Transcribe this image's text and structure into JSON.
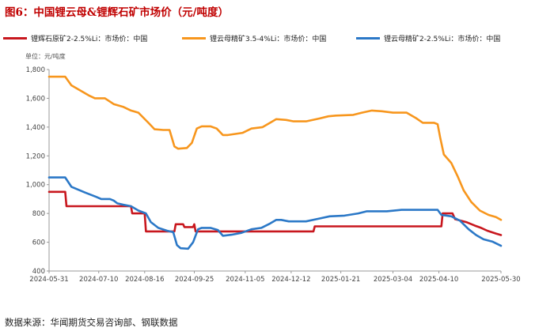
{
  "title": "图6：中国锂云母&锂辉石矿市场价（元/吨度）",
  "unit_label": "单位：元/吨度",
  "source": "数据来源：华闻期货交易咨询部、钢联数据",
  "colors": {
    "title": "#c00000",
    "axis": "#999999"
  },
  "chart_data": {
    "type": "line",
    "title": "图6：中国锂云母&锂辉石矿市场价（元/吨度）",
    "ylabel": "单位：元/吨度",
    "ylim": [
      400,
      1800
    ],
    "xlim": [
      "2024-05-31",
      "2025-05-30"
    ],
    "grid": false,
    "legend_position": "top",
    "y_ticks": [
      "400",
      "600",
      "800",
      "1,000",
      "1,200",
      "1,400",
      "1,600",
      "1,800"
    ],
    "x_ticks": [
      "2024-05-31",
      "2024-07-10",
      "2024-08-16",
      "2024-09-25",
      "2024-11-05",
      "2024-12-12",
      "2025-01-21",
      "2025-03-04",
      "2025-04-10",
      "2025-05-30"
    ],
    "series": [
      {
        "name": "锂辉石原矿2-2.5%Li：市场价：中国",
        "color": "#c8171e",
        "points": [
          [
            "2024-05-31",
            950
          ],
          [
            "2024-06-13",
            950
          ],
          [
            "2024-06-14",
            850
          ],
          [
            "2024-08-05",
            850
          ],
          [
            "2024-08-06",
            800
          ],
          [
            "2024-08-16",
            800
          ],
          [
            "2024-08-17",
            675
          ],
          [
            "2024-09-09",
            675
          ],
          [
            "2024-09-10",
            725
          ],
          [
            "2024-09-16",
            725
          ],
          [
            "2024-09-17",
            705
          ],
          [
            "2024-09-24",
            705
          ],
          [
            "2024-09-25",
            725
          ],
          [
            "2024-09-26",
            675
          ],
          [
            "2024-12-30",
            675
          ],
          [
            "2024-12-31",
            710
          ],
          [
            "2025-04-12",
            710
          ],
          [
            "2025-04-13",
            800
          ],
          [
            "2025-04-21",
            800
          ],
          [
            "2025-04-23",
            760
          ],
          [
            "2025-05-02",
            740
          ],
          [
            "2025-05-09",
            715
          ],
          [
            "2025-05-14",
            700
          ],
          [
            "2025-05-19",
            680
          ],
          [
            "2025-05-26",
            660
          ],
          [
            "2025-05-30",
            650
          ]
        ]
      },
      {
        "name": "锂云母精矿3.5-4%Li：市场价：中国",
        "color": "#f7961d",
        "points": [
          [
            "2024-05-31",
            1750
          ],
          [
            "2024-06-13",
            1750
          ],
          [
            "2024-06-18",
            1690
          ],
          [
            "2024-07-02",
            1620
          ],
          [
            "2024-07-07",
            1600
          ],
          [
            "2024-07-15",
            1600
          ],
          [
            "2024-07-22",
            1560
          ],
          [
            "2024-07-30",
            1540
          ],
          [
            "2024-08-05",
            1515
          ],
          [
            "2024-08-11",
            1500
          ],
          [
            "2024-08-19",
            1430
          ],
          [
            "2024-08-24",
            1385
          ],
          [
            "2024-08-31",
            1380
          ],
          [
            "2024-09-05",
            1380
          ],
          [
            "2024-09-09",
            1265
          ],
          [
            "2024-09-12",
            1250
          ],
          [
            "2024-09-19",
            1255
          ],
          [
            "2024-09-23",
            1290
          ],
          [
            "2024-09-27",
            1390
          ],
          [
            "2024-10-01",
            1405
          ],
          [
            "2024-10-08",
            1405
          ],
          [
            "2024-10-13",
            1390
          ],
          [
            "2024-10-18",
            1345
          ],
          [
            "2024-10-22",
            1345
          ],
          [
            "2024-11-03",
            1360
          ],
          [
            "2024-11-10",
            1390
          ],
          [
            "2024-11-19",
            1400
          ],
          [
            "2024-11-26",
            1435
          ],
          [
            "2024-11-30",
            1455
          ],
          [
            "2024-12-08",
            1450
          ],
          [
            "2024-12-14",
            1440
          ],
          [
            "2024-12-24",
            1440
          ],
          [
            "2025-01-04",
            1460
          ],
          [
            "2025-01-11",
            1475
          ],
          [
            "2025-01-17",
            1480
          ],
          [
            "2025-01-31",
            1485
          ],
          [
            "2025-02-07",
            1500
          ],
          [
            "2025-02-15",
            1515
          ],
          [
            "2025-02-23",
            1510
          ],
          [
            "2025-03-04",
            1500
          ],
          [
            "2025-03-15",
            1500
          ],
          [
            "2025-03-23",
            1460
          ],
          [
            "2025-03-28",
            1430
          ],
          [
            "2025-04-06",
            1430
          ],
          [
            "2025-04-09",
            1420
          ],
          [
            "2025-04-11",
            1330
          ],
          [
            "2025-04-14",
            1210
          ],
          [
            "2025-04-20",
            1150
          ],
          [
            "2025-04-25",
            1060
          ],
          [
            "2025-04-30",
            960
          ],
          [
            "2025-05-06",
            880
          ],
          [
            "2025-05-13",
            820
          ],
          [
            "2025-05-20",
            790
          ],
          [
            "2025-05-26",
            775
          ],
          [
            "2025-05-30",
            755
          ]
        ]
      },
      {
        "name": "锂云母精矿2-2.5%Li：市场价：中国",
        "color": "#2b78c7",
        "points": [
          [
            "2024-05-31",
            1050
          ],
          [
            "2024-06-13",
            1050
          ],
          [
            "2024-06-18",
            985
          ],
          [
            "2024-06-29",
            945
          ],
          [
            "2024-07-08",
            915
          ],
          [
            "2024-07-12",
            900
          ],
          [
            "2024-07-19",
            900
          ],
          [
            "2024-07-22",
            890
          ],
          [
            "2024-07-25",
            870
          ],
          [
            "2024-07-30",
            860
          ],
          [
            "2024-08-05",
            850
          ],
          [
            "2024-08-11",
            820
          ],
          [
            "2024-08-17",
            800
          ],
          [
            "2024-08-21",
            740
          ],
          [
            "2024-08-27",
            700
          ],
          [
            "2024-09-03",
            680
          ],
          [
            "2024-09-08",
            670
          ],
          [
            "2024-09-11",
            580
          ],
          [
            "2024-09-14",
            558
          ],
          [
            "2024-09-20",
            555
          ],
          [
            "2024-09-24",
            600
          ],
          [
            "2024-09-28",
            690
          ],
          [
            "2024-10-01",
            700
          ],
          [
            "2024-10-08",
            700
          ],
          [
            "2024-10-14",
            685
          ],
          [
            "2024-10-18",
            645
          ],
          [
            "2024-10-25",
            652
          ],
          [
            "2024-11-02",
            665
          ],
          [
            "2024-11-10",
            690
          ],
          [
            "2024-11-18",
            700
          ],
          [
            "2024-11-25",
            730
          ],
          [
            "2024-11-30",
            755
          ],
          [
            "2024-12-04",
            755
          ],
          [
            "2024-12-10",
            745
          ],
          [
            "2024-12-24",
            745
          ],
          [
            "2025-01-04",
            765
          ],
          [
            "2025-01-12",
            780
          ],
          [
            "2025-01-24",
            785
          ],
          [
            "2025-02-04",
            800
          ],
          [
            "2025-02-11",
            815
          ],
          [
            "2025-02-27",
            815
          ],
          [
            "2025-03-11",
            825
          ],
          [
            "2025-03-28",
            825
          ],
          [
            "2025-04-09",
            825
          ],
          [
            "2025-04-12",
            790
          ],
          [
            "2025-04-20",
            780
          ],
          [
            "2025-04-27",
            750
          ],
          [
            "2025-05-04",
            690
          ],
          [
            "2025-05-10",
            650
          ],
          [
            "2025-05-16",
            620
          ],
          [
            "2025-05-23",
            605
          ],
          [
            "2025-05-30",
            575
          ]
        ]
      }
    ]
  }
}
